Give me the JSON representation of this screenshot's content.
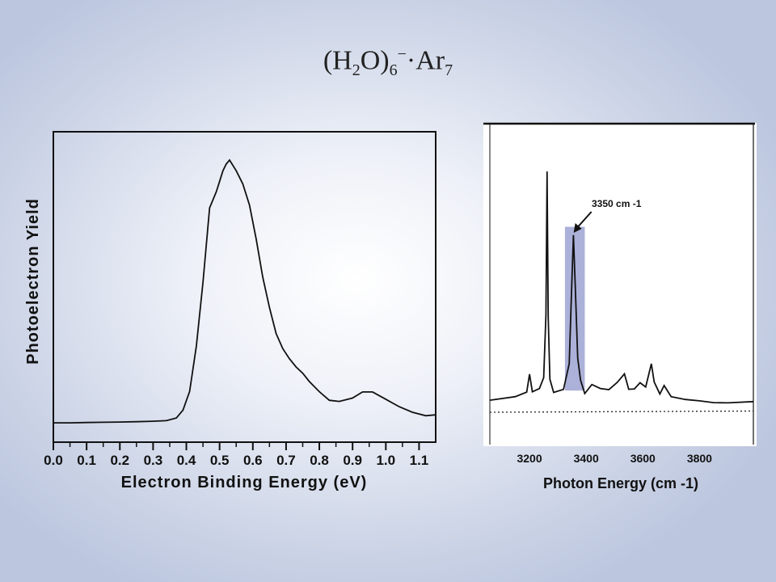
{
  "title": {
    "base": "(H",
    "sub1": "2",
    "mid": "O)",
    "sub2": "6",
    "sup": "−",
    "end": "·Ar",
    "sub3": "7"
  },
  "chart_data": [
    {
      "type": "line",
      "title": "",
      "xlabel": "Electron Binding Energy (eV)",
      "ylabel": "Photoelectron Yield",
      "xlim": [
        0.0,
        1.15
      ],
      "ylim": [
        0,
        1.0
      ],
      "xticks": [
        "0.0",
        "0.1",
        "0.2",
        "0.3",
        "0.4",
        "0.5",
        "0.6",
        "0.7",
        "0.8",
        "0.9",
        "1.0",
        "1.1"
      ],
      "grid": false,
      "series": [
        {
          "x": [
            0.0,
            0.05,
            0.1,
            0.15,
            0.2,
            0.25,
            0.3,
            0.34,
            0.37,
            0.39,
            0.41,
            0.43,
            0.45,
            0.47,
            0.49,
            0.5,
            0.51,
            0.52,
            0.53,
            0.55,
            0.57,
            0.59,
            0.61,
            0.63,
            0.65,
            0.67,
            0.69,
            0.71,
            0.73,
            0.75,
            0.77,
            0.8,
            0.83,
            0.86,
            0.9,
            0.93,
            0.96,
            1.0,
            1.04,
            1.08,
            1.12,
            1.15
          ],
          "y": [
            0.012,
            0.012,
            0.013,
            0.014,
            0.015,
            0.016,
            0.018,
            0.02,
            0.03,
            0.06,
            0.13,
            0.3,
            0.54,
            0.82,
            0.88,
            0.92,
            0.96,
            0.985,
            1.0,
            0.96,
            0.91,
            0.83,
            0.7,
            0.55,
            0.44,
            0.35,
            0.3,
            0.26,
            0.22,
            0.19,
            0.16,
            0.13,
            0.105,
            0.1,
            0.105,
            0.12,
            0.12,
            0.1,
            0.08,
            0.06,
            0.04,
            0.035
          ]
        }
      ]
    },
    {
      "type": "line",
      "title": "",
      "xlabel": "Photon Energy (cm -1)",
      "ylabel": "",
      "xlim": [
        3060,
        3990
      ],
      "ylim": [
        0,
        1.0
      ],
      "xticks": [
        "3200",
        "3400",
        "3600",
        "3800"
      ],
      "grid": false,
      "annotation": {
        "text": "3350 cm -1",
        "x": 3350
      },
      "highlight_band": [
        3325,
        3395
      ],
      "series": [
        {
          "x": [
            3060,
            3150,
            3190,
            3200,
            3210,
            3235,
            3250,
            3258,
            3262,
            3266,
            3272,
            3285,
            3320,
            3340,
            3348,
            3355,
            3362,
            3370,
            3380,
            3395,
            3420,
            3450,
            3480,
            3510,
            3535,
            3550,
            3570,
            3590,
            3610,
            3630,
            3640,
            3660,
            3675,
            3700,
            3750,
            3800,
            3850,
            3900,
            3990
          ],
          "y": [
            0.05,
            0.06,
            0.08,
            0.16,
            0.09,
            0.1,
            0.14,
            0.4,
            1.0,
            0.4,
            0.14,
            0.08,
            0.09,
            0.2,
            0.5,
            0.74,
            0.5,
            0.22,
            0.13,
            0.08,
            0.12,
            0.1,
            0.09,
            0.12,
            0.16,
            0.1,
            0.1,
            0.12,
            0.1,
            0.2,
            0.13,
            0.08,
            0.11,
            0.06,
            0.05,
            0.05,
            0.045,
            0.04,
            0.04
          ]
        },
        {
          "x": [
            3060,
            3990
          ],
          "y": [
            0.0,
            0.005
          ]
        }
      ]
    }
  ]
}
